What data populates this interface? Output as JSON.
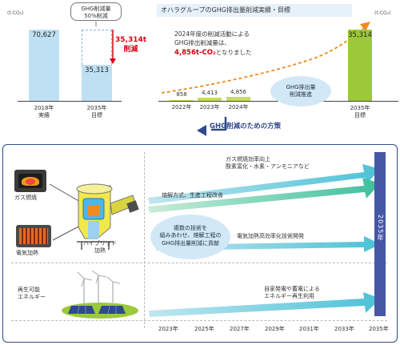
{
  "top": {
    "title": "オハラグループのGHG排出量削減実績・目標",
    "left_chart": {
      "unit": "(t-CO₂)",
      "callout": "GHG削減量\n50%削減",
      "reduction_label": "35,314t\n削減",
      "bars": [
        {
          "value": 70627,
          "label": "70,627",
          "xlabel": "2018年\n実績"
        },
        {
          "value": 35313,
          "label": "35,313",
          "xlabel": "2035年\n目標"
        }
      ]
    },
    "right_chart": {
      "unit": "(t-CO₂)",
      "note_line1": "2024年度の削減活動による",
      "note_line2": "GHG排出削減量は、",
      "note_highlight": "4,856t-CO₂",
      "note_tail": "となりました",
      "trend_label": "GHG排出量\n削減推進",
      "bars": [
        {
          "value": 858,
          "label": "858",
          "xlabel": "2022年"
        },
        {
          "value": 4413,
          "label": "4,413",
          "xlabel": "2023年"
        },
        {
          "value": 4856,
          "label": "4,856",
          "xlabel": "2024年"
        },
        {
          "value": 35314,
          "label": "35,314",
          "xlabel": "2035年\n目標"
        }
      ]
    },
    "colors": {
      "light_blue": "#bfe0f3",
      "green": "#c6de5a",
      "green_target": "#9cc93a",
      "red": "#d7000f",
      "orange": "#f08b1d"
    }
  },
  "section_title": "GHG削減のための方策",
  "lower": {
    "sources": [
      "ガス燃焼",
      "電気加熱"
    ],
    "furnace_label": "ハイブリッド\n加熱",
    "renewable_label": "再生可能\nエネルギー",
    "arrows": [
      "ガス燃焼効率向上\n酸素富化・水素・アンモニアなど",
      "熔解方式、生産工程改善",
      "電気加熱高効率化技術開発",
      "自家発電や蓄電による\nエネルギー再生利用"
    ],
    "bubble": "複数の技術を\n組みあわせ、熔解工程の\nGHG排出量削減に貢献",
    "target_bar": "2035年",
    "years": [
      "2023年",
      "2025年",
      "2027年",
      "2029年",
      "2031年",
      "2033年",
      "2035年"
    ]
  }
}
